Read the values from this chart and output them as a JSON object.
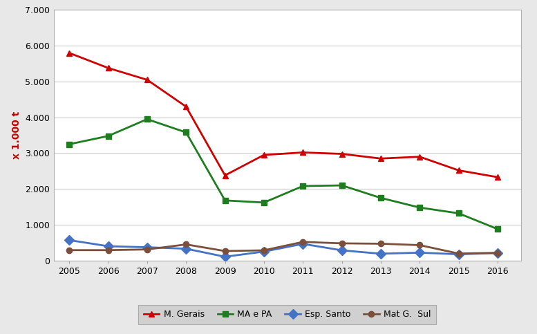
{
  "years": [
    2005,
    2006,
    2007,
    2008,
    2009,
    2010,
    2011,
    2012,
    2013,
    2014,
    2015,
    2016
  ],
  "M_Gerais": [
    5800,
    5380,
    5050,
    4300,
    2380,
    2950,
    3020,
    2980,
    2850,
    2900,
    2520,
    2330
  ],
  "MA_e_PA": [
    3250,
    3480,
    3950,
    3580,
    1680,
    1620,
    2080,
    2100,
    1750,
    1480,
    1320,
    880
  ],
  "Esp_Santo": [
    570,
    400,
    370,
    330,
    105,
    250,
    465,
    285,
    190,
    220,
    175,
    210
  ],
  "Mat_G_Sul": [
    290,
    290,
    310,
    450,
    265,
    285,
    520,
    480,
    470,
    430,
    195,
    215
  ],
  "series_labels": [
    "M. Gerais",
    "MA e PA",
    "Esp. Santo",
    "Mat G.  Sul"
  ],
  "series_colors": [
    "#d00000",
    "#1e7d1e",
    "#4472c4",
    "#7b4f3a"
  ],
  "series_markers": [
    "^",
    "s",
    "D",
    "o"
  ],
  "ylabel": "x 1.000 t",
  "ylim": [
    0,
    7000
  ],
  "yticks": [
    0,
    1000,
    2000,
    3000,
    4000,
    5000,
    6000,
    7000
  ],
  "ytick_labels": [
    "0",
    "1.000",
    "2.000",
    "3.000",
    "4.000",
    "5.000",
    "6.000",
    "7.000"
  ],
  "background_color": "#e8e8e8",
  "plot_bg_color": "#ffffff",
  "grid_color": "#c8c8c8",
  "legend_bg": "#d0d0d0",
  "border_color": "#b0b0b0"
}
